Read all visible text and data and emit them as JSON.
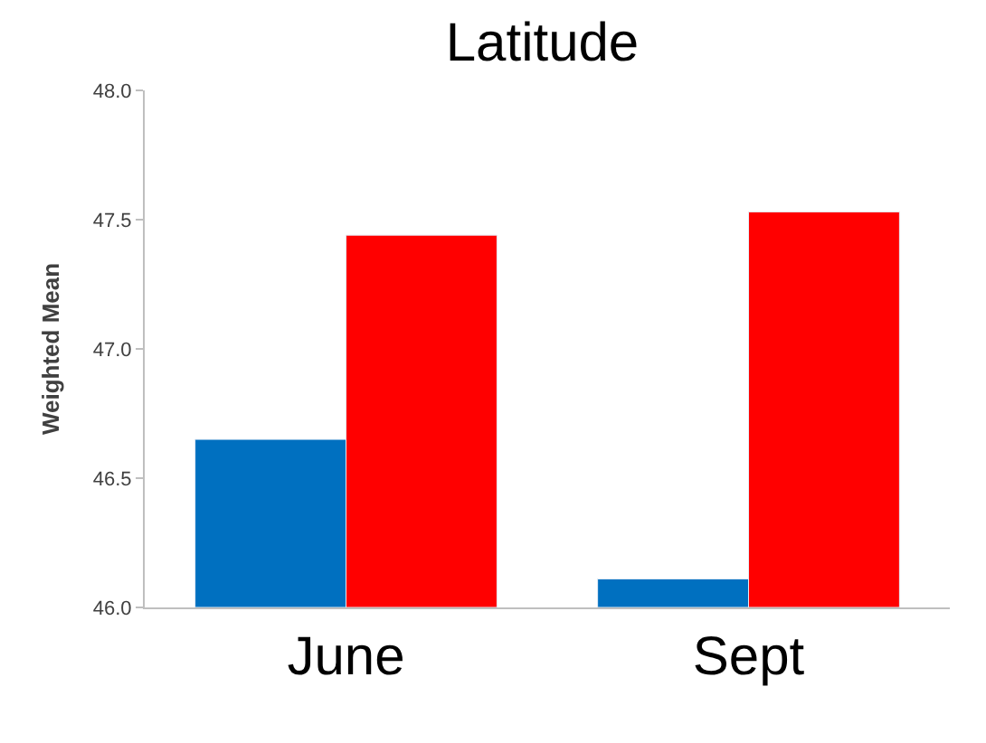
{
  "chart_data": {
    "type": "bar",
    "title": "Latitude",
    "ylabel": "Weighted Mean",
    "categories": [
      "June",
      "Sept"
    ],
    "series": [
      {
        "color": "#0070c0",
        "values": [
          46.65,
          46.11
        ]
      },
      {
        "color": "#ff0000",
        "values": [
          47.44,
          47.53
        ]
      }
    ],
    "ylim": [
      46.0,
      48.0
    ],
    "yticks": [
      {
        "value": 46.0,
        "label": "46.0"
      },
      {
        "value": 46.5,
        "label": "46.5"
      },
      {
        "value": 47.0,
        "label": "47.0"
      },
      {
        "value": 47.5,
        "label": "47.5"
      },
      {
        "value": 48.0,
        "label": "48.0"
      }
    ]
  }
}
